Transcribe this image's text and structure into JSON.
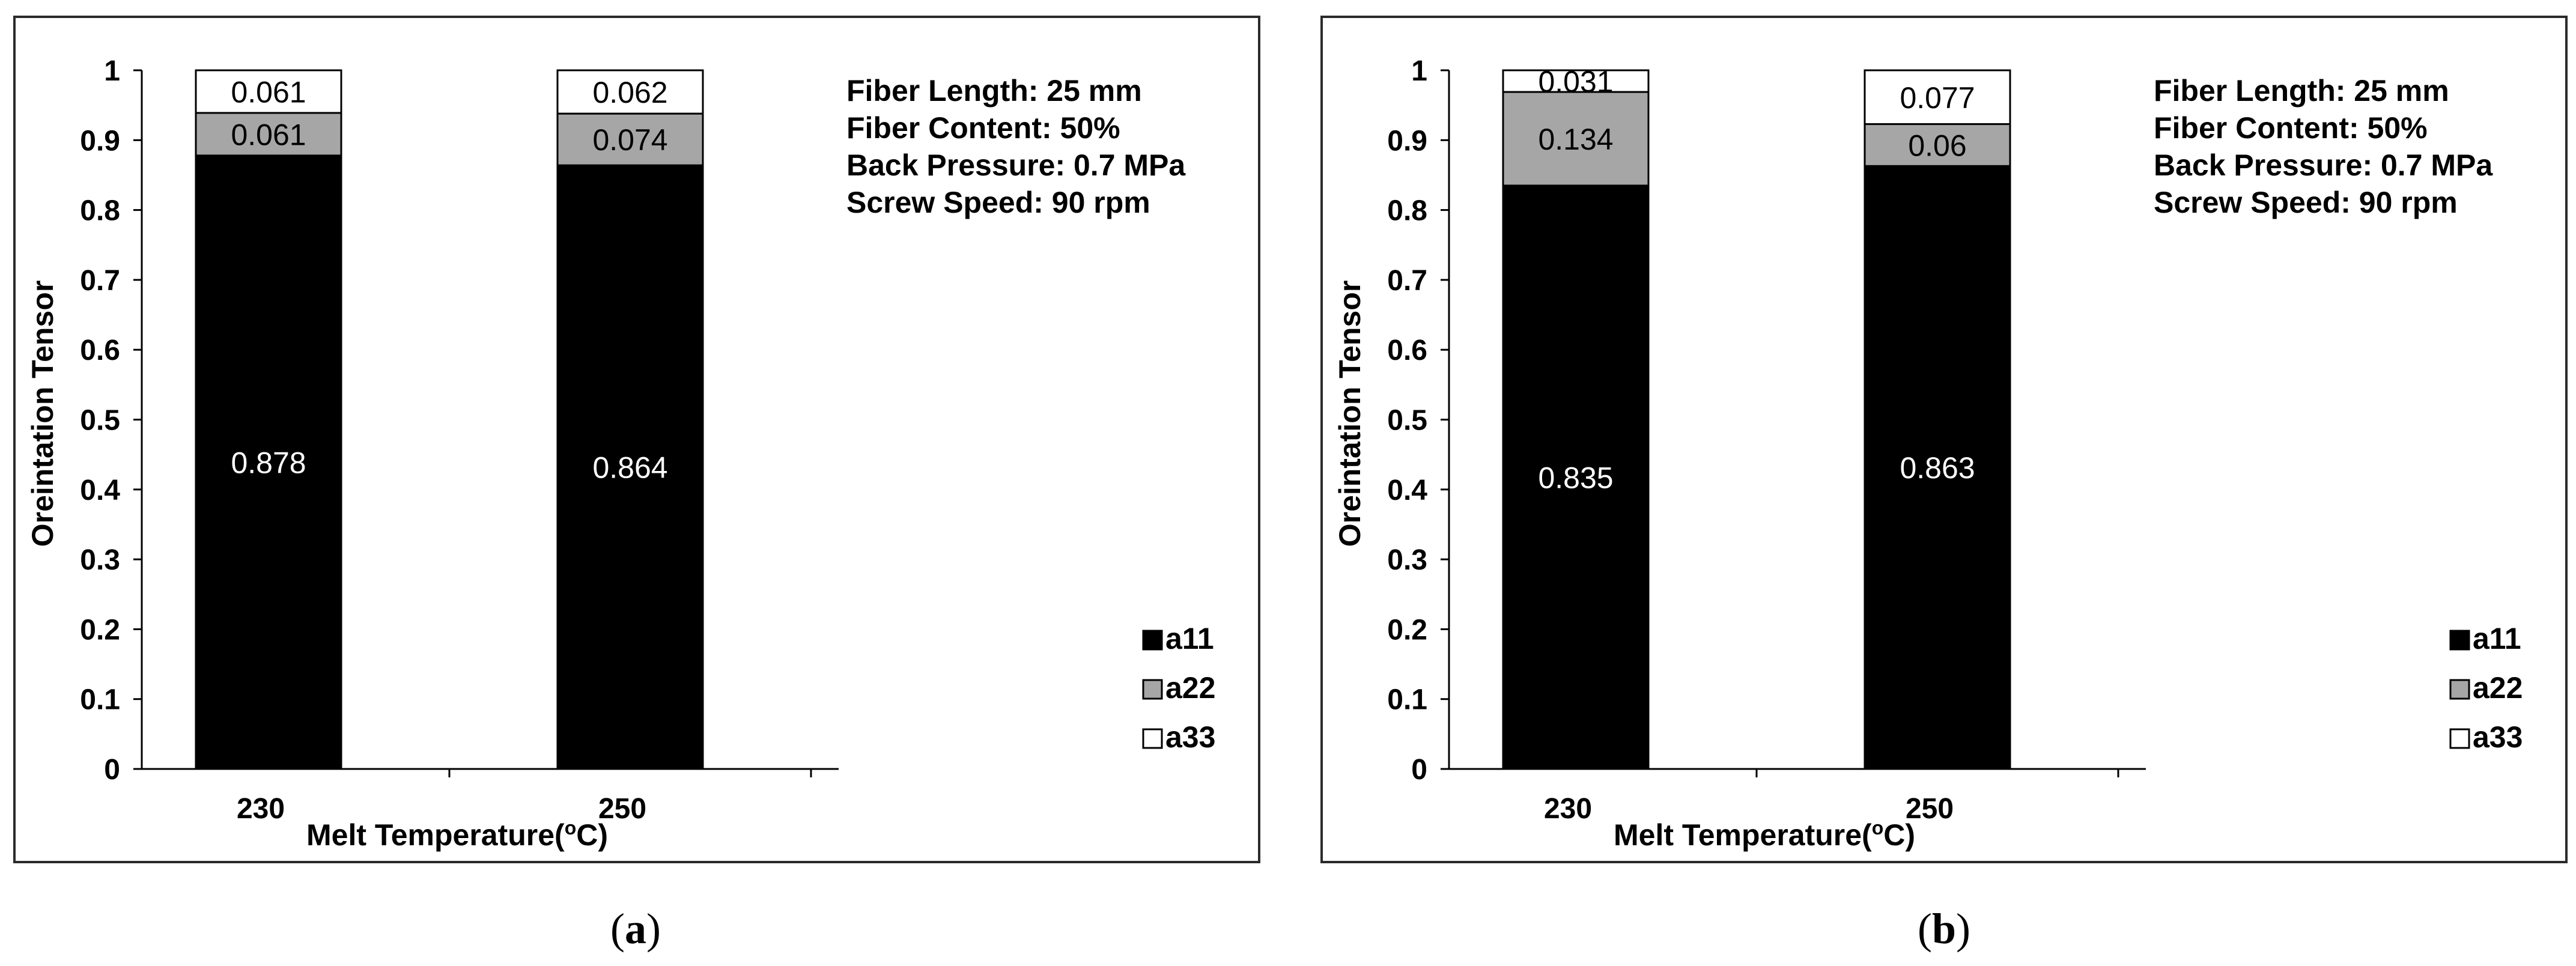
{
  "panels": [
    {
      "caption_letter": "a",
      "chart_data": {
        "type": "bar",
        "stacked": true,
        "categories": [
          "230",
          "250"
        ],
        "series": [
          {
            "name": "a11",
            "values": [
              0.878,
              0.864
            ],
            "color": "#000000",
            "label_color": "#ffffff"
          },
          {
            "name": "a22",
            "values": [
              0.061,
              0.074
            ],
            "color": "#a6a6a6",
            "label_color": "#000000"
          },
          {
            "name": "a33",
            "values": [
              0.061,
              0.062
            ],
            "color": "#ffffff",
            "label_color": "#000000"
          }
        ],
        "data_labels": [
          [
            "0.878",
            "0.864"
          ],
          [
            "0.061",
            "0.074"
          ],
          [
            "0.061",
            "0.062"
          ]
        ],
        "xlabel": "Melt Temperature(",
        "xlabel_sup": "o",
        "xlabel_end": "C)",
        "ylabel": "Oreintation Tensor",
        "ylim": [
          0,
          1
        ],
        "yticks": [
          "0",
          "0.1",
          "0.2",
          "0.3",
          "0.4",
          "0.5",
          "0.6",
          "0.7",
          "0.8",
          "0.9",
          "1"
        ],
        "grid": false,
        "legend_position": "bottom-right",
        "annotations": [
          "Fiber Length: 25 mm",
          "Fiber Content: 50%",
          "Back Pressure: 0.7 MPa",
          "Screw Speed: 90 rpm"
        ]
      }
    },
    {
      "caption_letter": "b",
      "chart_data": {
        "type": "bar",
        "stacked": true,
        "categories": [
          "230",
          "250"
        ],
        "series": [
          {
            "name": "a11",
            "values": [
              0.835,
              0.863
            ],
            "color": "#000000",
            "label_color": "#ffffff"
          },
          {
            "name": "a22",
            "values": [
              0.134,
              0.06
            ],
            "color": "#a6a6a6",
            "label_color": "#000000"
          },
          {
            "name": "a33",
            "values": [
              0.031,
              0.077
            ],
            "color": "#ffffff",
            "label_color": "#000000"
          }
        ],
        "data_labels": [
          [
            "0.835",
            "0.863"
          ],
          [
            "0.134",
            "0.06"
          ],
          [
            "0.031",
            "0.077"
          ]
        ],
        "xlabel": "Melt Temperature(",
        "xlabel_sup": "o",
        "xlabel_end": "C)",
        "ylabel": "Oreintation Tensor",
        "ylim": [
          0,
          1
        ],
        "yticks": [
          "0",
          "0.1",
          "0.2",
          "0.3",
          "0.4",
          "0.5",
          "0.6",
          "0.7",
          "0.8",
          "0.9",
          "1"
        ],
        "grid": false,
        "legend_position": "bottom-right",
        "annotations": [
          "Fiber Length: 25 mm",
          "Fiber Content: 50%",
          "Back Pressure: 0.7 MPa",
          "Screw Speed: 90 rpm"
        ]
      }
    }
  ]
}
